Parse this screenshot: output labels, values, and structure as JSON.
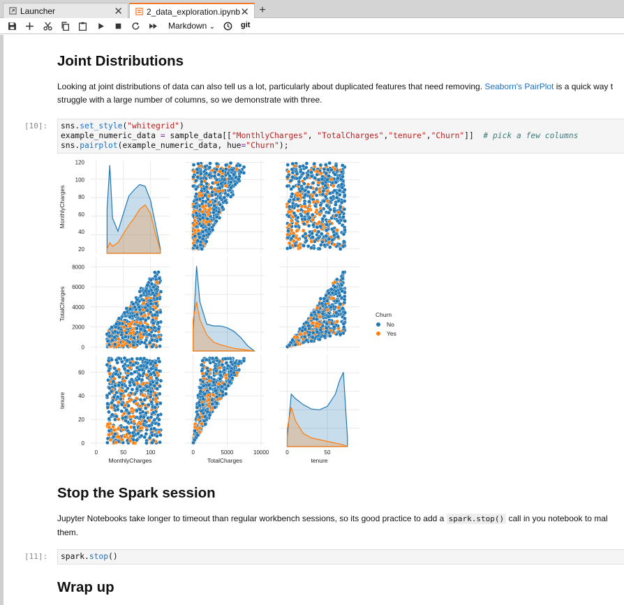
{
  "tabs": [
    {
      "label": "Launcher",
      "active": false
    },
    {
      "label": "2_data_exploration.ipynb",
      "active": true
    }
  ],
  "toolbar": {
    "cell_type": "Markdown",
    "git_label": "git"
  },
  "section1": {
    "heading": "Joint Distributions",
    "para_line1_a": "Looking at joint distributions of data can also tell us a lot, particularly about duplicated features that need removing. ",
    "para_line1_link": "Seaborn's PairPlot",
    "para_line1_b": " is a quick way t",
    "para_line2": "struggle with a large number of columns, so we demonstrate with three."
  },
  "cell10": {
    "prompt": "[10]:",
    "line1_a": "sns.",
    "line1_fn": "set_style",
    "line1_b": "(",
    "line1_str": "\"whitegrid\"",
    "line1_c": ")",
    "line2_a": "example_numeric_data ",
    "line2_op": "=",
    "line2_b": " sample_data[[",
    "line2_s1": "\"MonthlyCharges\"",
    "line2_c": ", ",
    "line2_s2": "\"TotalCharges\"",
    "line2_d": ",",
    "line2_s3": "\"tenure\"",
    "line2_e": ",",
    "line2_s4": "\"Churn\"",
    "line2_f": "]]  ",
    "line2_cm": "# pick a few columns",
    "line3_a": "sns.",
    "line3_fn": "pairplot",
    "line3_b": "(example_numeric_data, hue",
    "line3_op": "=",
    "line3_str": "\"Churn\"",
    "line3_c": ");"
  },
  "chart_data": {
    "type": "scatter",
    "title": "",
    "variables": [
      "MonthlyCharges",
      "TotalCharges",
      "tenure"
    ],
    "hue": "Churn",
    "legend": {
      "title": "Churn",
      "entries": [
        {
          "label": "No",
          "color": "#1f77b4"
        },
        {
          "label": "Yes",
          "color": "#ff7f0e"
        }
      ],
      "placement": "right"
    },
    "axes": {
      "MonthlyCharges": {
        "ylim": [
          15,
          122
        ],
        "yticks": [
          20,
          40,
          60,
          80,
          100,
          120
        ],
        "xlim": [
          -10,
          135
        ],
        "xticks": [
          0,
          50,
          100
        ]
      },
      "TotalCharges": {
        "ylim": [
          -400,
          9000
        ],
        "yticks": [
          0,
          2000,
          4000,
          6000,
          8000
        ],
        "xlim": [
          -1200,
          10500
        ],
        "xticks": [
          0,
          5000,
          10000
        ]
      },
      "tenure": {
        "ylim": [
          -3,
          75
        ],
        "yticks": [
          0,
          20,
          40,
          60
        ],
        "xlim": [
          -10,
          90
        ],
        "xticks": [
          0,
          50
        ]
      }
    },
    "kde": {
      "MonthlyCharges": {
        "x": [
          20,
          25,
          30,
          40,
          50,
          60,
          70,
          80,
          90,
          100,
          110,
          118
        ],
        "No": [
          0.5,
          1.0,
          0.4,
          0.25,
          0.45,
          0.65,
          0.72,
          0.78,
          0.76,
          0.6,
          0.3,
          0.05
        ],
        "Yes": [
          0.05,
          0.12,
          0.08,
          0.12,
          0.22,
          0.32,
          0.4,
          0.5,
          0.55,
          0.45,
          0.2,
          0.03
        ]
      },
      "TotalCharges": {
        "x": [
          0,
          500,
          1000,
          2000,
          3000,
          4000,
          5000,
          6000,
          7000,
          8000,
          9000
        ],
        "No": [
          0.2,
          0.95,
          0.55,
          0.3,
          0.28,
          0.28,
          0.26,
          0.22,
          0.15,
          0.06,
          0.0
        ],
        "Yes": [
          0.35,
          0.55,
          0.35,
          0.18,
          0.1,
          0.07,
          0.05,
          0.03,
          0.02,
          0.01,
          0.0
        ]
      },
      "tenure": {
        "x": [
          0,
          5,
          10,
          20,
          30,
          40,
          50,
          60,
          65,
          70,
          75
        ],
        "No": [
          0.1,
          0.6,
          0.55,
          0.48,
          0.43,
          0.42,
          0.46,
          0.6,
          0.75,
          0.85,
          0.1
        ],
        "Yes": [
          0.2,
          0.45,
          0.3,
          0.15,
          0.1,
          0.08,
          0.06,
          0.04,
          0.03,
          0.02,
          0.0
        ]
      }
    }
  },
  "section2": {
    "heading": "Stop the Spark session",
    "para_a": "Jupyter Notebooks take longer to timeout than regular workbench sessions, so its good practice to add a ",
    "para_code": "spark.stop()",
    "para_b": " call in you notebook to mal",
    "para_line2": "them."
  },
  "cell11": {
    "prompt": "[11]:",
    "code_a": "spark.",
    "code_fn": "stop",
    "code_b": "()"
  },
  "section3": {
    "heading": "Wrap up"
  }
}
